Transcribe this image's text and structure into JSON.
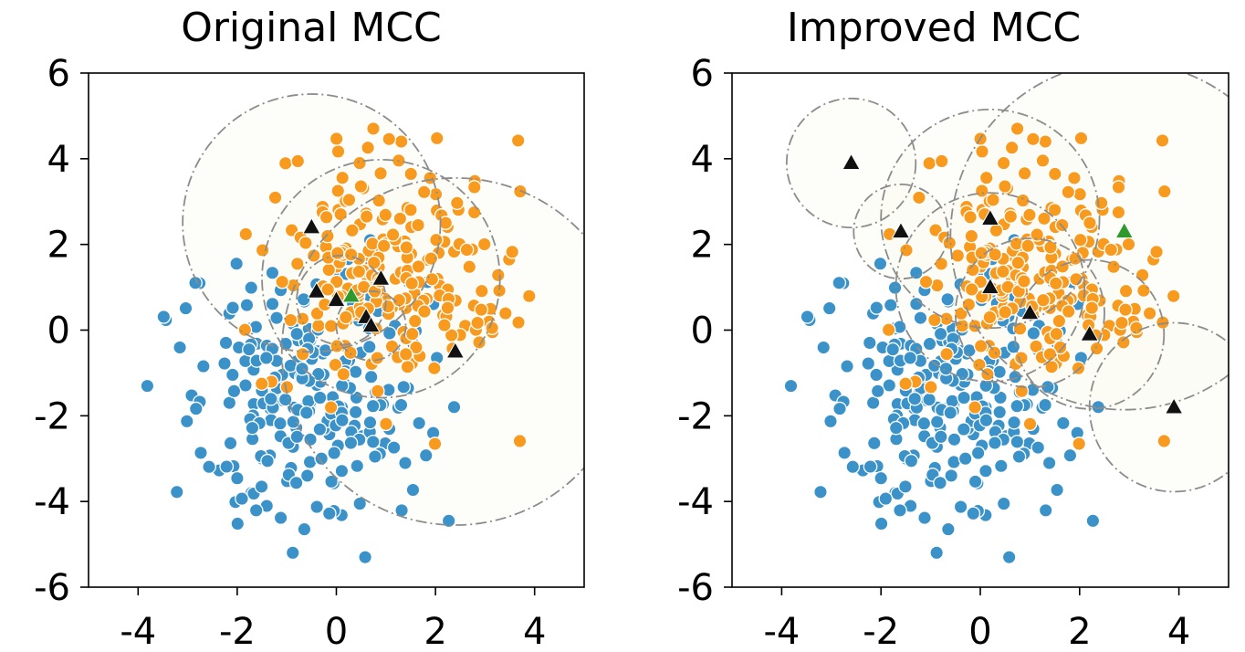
{
  "colors": {
    "class_0": "#3a92c8",
    "class_1": "#f79a1e",
    "centers": "#111111",
    "highlight_center": "#2e9a2e",
    "circles": "#8c8c8c",
    "circle_fill": "#fbfbf4"
  },
  "chart_data": [
    {
      "type": "scatter",
      "title": "Original MCC",
      "xlabel": "",
      "ylabel": "",
      "xlim": [
        -5,
        5
      ],
      "ylim": [
        -6,
        6
      ],
      "xticks": [
        "-4",
        "-2",
        "0",
        "2",
        "4"
      ],
      "yticks": [
        "-6",
        "-4",
        "-2",
        "0",
        "2",
        "4",
        "6"
      ],
      "grid": false,
      "legend": "none",
      "circles": [
        {
          "cx": -0.5,
          "cy": 2.5,
          "r": 2.6
        },
        {
          "cx": 0.9,
          "cy": 1.2,
          "r": 2.4
        },
        {
          "cx": 2.4,
          "cy": -0.5,
          "r": 3.5
        },
        {
          "cx": 0.1,
          "cy": 0.7,
          "r": 0.9
        },
        {
          "cx": 0.7,
          "cy": 0.1,
          "r": 0.7
        }
      ],
      "centers": [
        {
          "x": -0.5,
          "y": 2.4
        },
        {
          "x": 0.9,
          "y": 1.2
        },
        {
          "x": -0.4,
          "y": 0.9
        },
        {
          "x": 0.0,
          "y": 0.7
        },
        {
          "x": 0.6,
          "y": 0.3
        },
        {
          "x": 0.7,
          "y": 0.1
        },
        {
          "x": 2.4,
          "y": -0.5
        }
      ],
      "highlight_centers": [
        {
          "x": 0.3,
          "y": 0.8
        }
      ]
    },
    {
      "type": "scatter",
      "title": "Improved MCC",
      "xlabel": "",
      "ylabel": "",
      "xlim": [
        -5,
        5
      ],
      "ylim": [
        -6,
        6
      ],
      "xticks": [
        "-4",
        "-2",
        "0",
        "2",
        "4"
      ],
      "yticks": [
        "-6",
        "-4",
        "-2",
        "0",
        "2",
        "4",
        "6"
      ],
      "grid": false,
      "legend": "none",
      "circles": [
        {
          "cx": -2.6,
          "cy": 3.9,
          "r": 1.3
        },
        {
          "cx": -1.6,
          "cy": 2.3,
          "r": 0.95
        },
        {
          "cx": 0.2,
          "cy": 2.6,
          "r": 2.2
        },
        {
          "cx": 2.9,
          "cy": 2.2,
          "r": 3.5
        },
        {
          "cx": 0.2,
          "cy": 1.0,
          "r": 1.9
        },
        {
          "cx": 1.0,
          "cy": 0.4,
          "r": 1.5
        },
        {
          "cx": 2.2,
          "cy": -0.1,
          "r": 1.5
        },
        {
          "cx": 3.9,
          "cy": -1.8,
          "r": 1.7
        }
      ],
      "centers": [
        {
          "x": -2.6,
          "y": 3.9
        },
        {
          "x": -1.6,
          "y": 2.3
        },
        {
          "x": 0.2,
          "y": 2.6
        },
        {
          "x": 0.2,
          "y": 1.0
        },
        {
          "x": 1.0,
          "y": 0.4
        },
        {
          "x": 2.2,
          "y": -0.1
        },
        {
          "x": 3.9,
          "y": -1.8
        }
      ],
      "highlight_centers": [
        {
          "x": 2.9,
          "y": 2.3
        }
      ]
    }
  ]
}
